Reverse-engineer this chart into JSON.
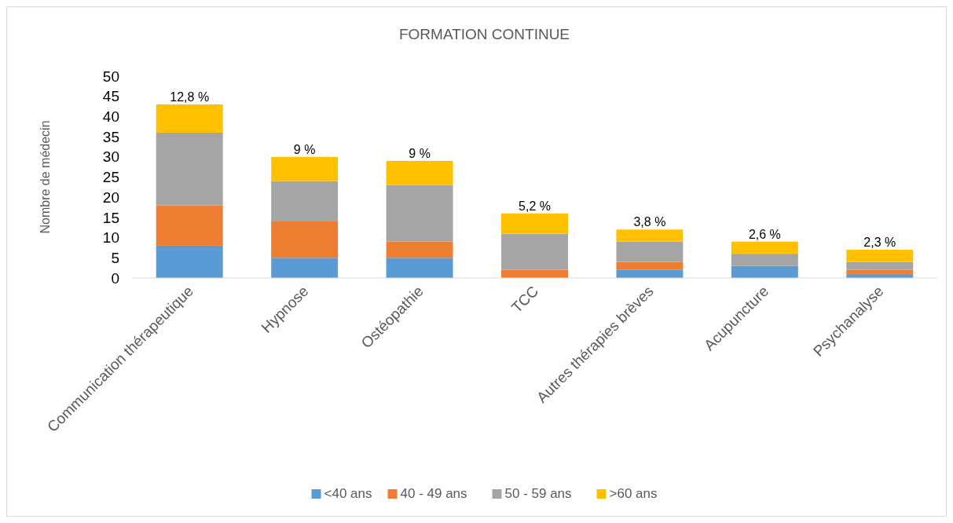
{
  "chart_data": {
    "type": "bar",
    "title": "FORMATION CONTINUE",
    "ylabel": "Nombre de médecin",
    "categories": [
      "Communication thérapeutique",
      "Hypnose",
      "Ostéopathie",
      "TCC",
      "Autres thérapies brèves",
      "Acupuncture",
      "Psychanalyse"
    ],
    "stacked": true,
    "series": [
      {
        "name": "<40 ans",
        "color": "#5b9bd5",
        "values": [
          8,
          5,
          5,
          0,
          2,
          3,
          1
        ]
      },
      {
        "name": "40 - 49 ans",
        "color": "#ed7d31",
        "values": [
          10,
          9,
          4,
          2,
          2,
          0,
          1
        ]
      },
      {
        "name": "50 - 59 ans",
        "color": "#a5a5a5",
        "values": [
          18,
          10,
          14,
          9,
          5,
          3,
          2
        ]
      },
      {
        "name": ">60 ans",
        "color": "#ffc000",
        "values": [
          7,
          6,
          6,
          5,
          3,
          3,
          3
        ]
      }
    ],
    "annotations": [
      {
        "text": "12,8 %",
        "x": "Communication thérapeutique",
        "y": 43
      },
      {
        "text": "9 %",
        "x": "Hypnose",
        "y": 30
      },
      {
        "text": "9 %",
        "x": "Ostéopathie",
        "y": 29
      },
      {
        "text": "5,2 %",
        "x": "TCC",
        "y": 16
      },
      {
        "text": "3,8 %",
        "x": "Autres thérapies brèves",
        "y": 12
      },
      {
        "text": "2,6 %",
        "x": "Acupuncture",
        "y": 9
      },
      {
        "text": "2,3 %",
        "x": "Psychanalyse",
        "y": 7
      }
    ],
    "ylim": [
      0,
      50
    ],
    "yticks": [
      0,
      5,
      10,
      15,
      20,
      25,
      30,
      35,
      40,
      45,
      50
    ],
    "legend": "bottom"
  }
}
